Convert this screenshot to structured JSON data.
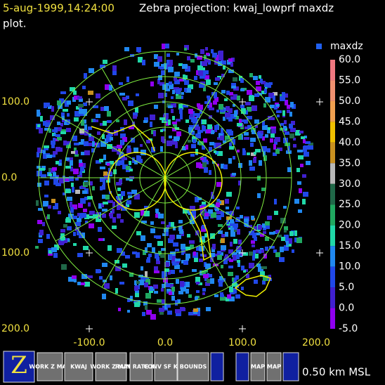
{
  "header": {
    "timestamp": "5-aug-1999,14:24:00",
    "title": "Zebra projection: kwaj_lowprf maxdz",
    "title_cont": "plot."
  },
  "plot": {
    "y_labels": [
      "100.0",
      "0.0",
      "100.0",
      "200.0"
    ],
    "x_labels": [
      "-100.0",
      "0.0",
      "100.0",
      "200.0"
    ]
  },
  "colorbar": {
    "title": "maxdz",
    "entries": [
      {
        "label": "60.0",
        "color": "#f07880"
      },
      {
        "label": "55.0",
        "color": "#f09070"
      },
      {
        "label": "50.0",
        "color": "#f0a050"
      },
      {
        "label": "45.0",
        "color": "#f0c000"
      },
      {
        "label": "40.0",
        "color": "#c89020"
      },
      {
        "label": "35.0",
        "color": "#b8b8b8"
      },
      {
        "label": "30.0",
        "color": "#206848"
      },
      {
        "label": "25.0",
        "color": "#20a860"
      },
      {
        "label": "20.0",
        "color": "#20d8a8"
      },
      {
        "label": "15.0",
        "color": "#2088f0"
      },
      {
        "label": "10.0",
        "color": "#2048e8"
      },
      {
        "label": "5.0",
        "color": "#4020d0"
      },
      {
        "label": "0.0",
        "color": "#9000f0"
      },
      {
        "label": "-5.0",
        "color": null
      }
    ]
  },
  "toolbar": {
    "buttons": [
      "Z",
      "WORK Z MAP",
      "KWAJ",
      "WORK Z MAP",
      "RAIN RATE KWAJ",
      "CONV SF KWA",
      "BOUNDS",
      "MAP",
      "MAP"
    ],
    "status": "0.50 km MSL"
  }
}
